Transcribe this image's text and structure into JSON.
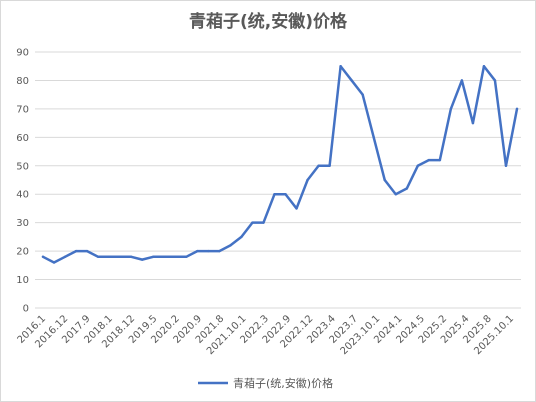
{
  "chart_data": {
    "type": "line",
    "title": "青葙子(统,安徽)价格",
    "xlabel": "",
    "ylabel": "",
    "ylim": [
      0,
      90
    ],
    "yticks": [
      0,
      10,
      20,
      30,
      40,
      50,
      60,
      70,
      80,
      90
    ],
    "grid": true,
    "legend_position": "bottom",
    "line_color": "#4472C4",
    "x_tick_labels": [
      "2016.1",
      "2016.12",
      "2017.9",
      "2018.1",
      "2018.12",
      "2019.5",
      "2020.2",
      "2020.9",
      "2021.8",
      "2021.10.1",
      "2022.3",
      "2022.9",
      "2022.12",
      "2023.4",
      "2023.7",
      "2023.10.1",
      "2024.1",
      "2024.5",
      "2025.2",
      "2025.4",
      "2025.8",
      "2025.10.1"
    ],
    "series": [
      {
        "name": "青葙子(统,安徽)价格",
        "values": [
          18,
          16,
          18,
          20,
          20,
          18,
          18,
          18,
          18,
          17,
          18,
          18,
          18,
          18,
          20,
          20,
          20,
          22,
          25,
          30,
          30,
          40,
          40,
          35,
          45,
          50,
          50,
          85,
          80,
          75,
          60,
          45,
          40,
          42,
          50,
          52,
          52,
          70,
          80,
          65,
          85,
          80,
          50,
          70
        ]
      }
    ]
  }
}
